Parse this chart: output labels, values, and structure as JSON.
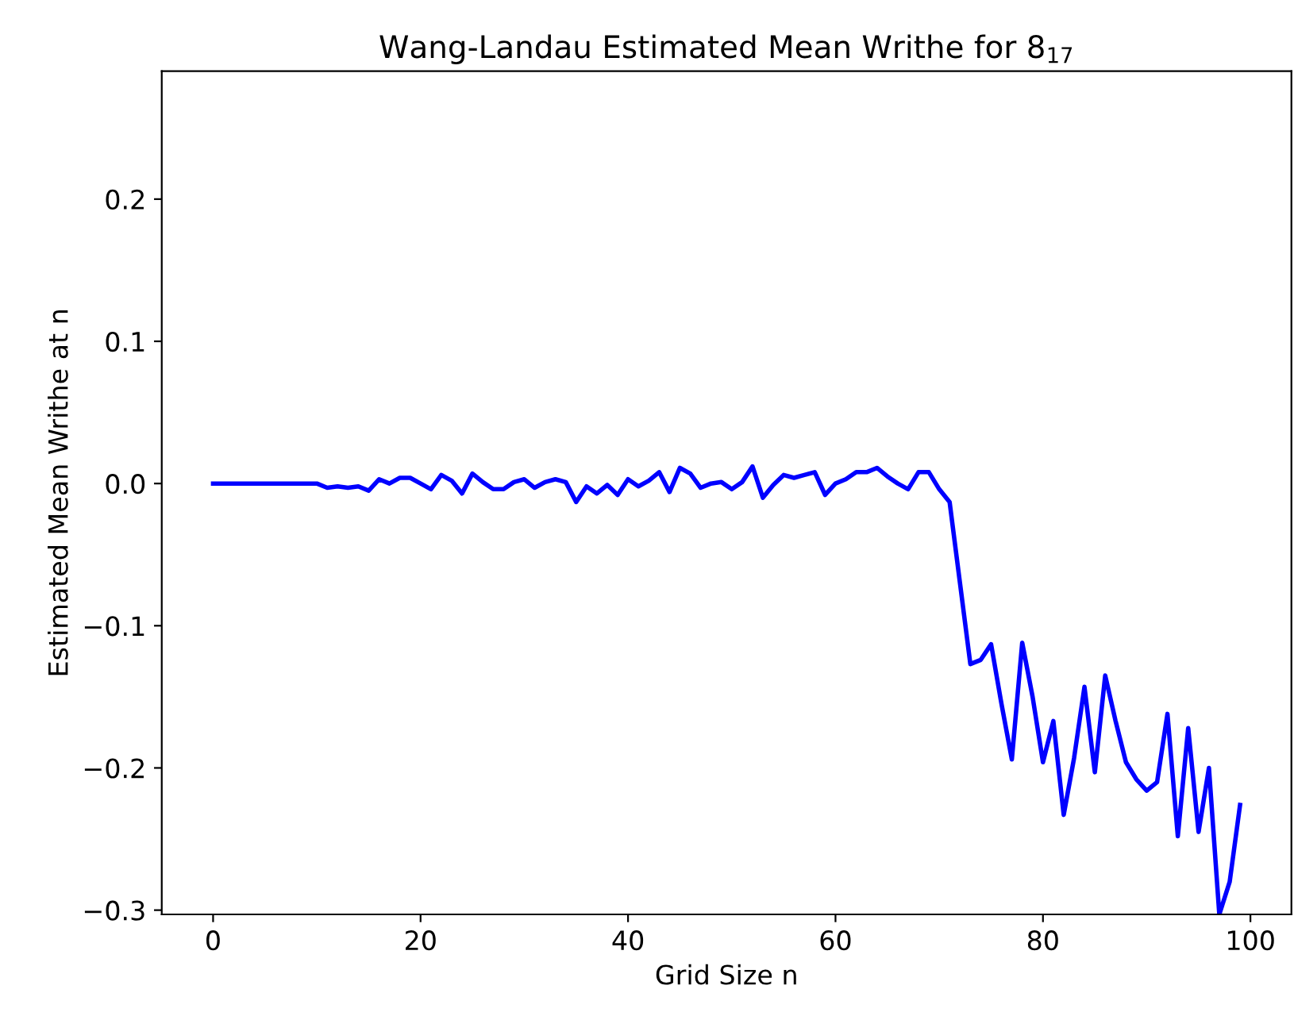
{
  "chart_data": {
    "type": "line",
    "title": "Wang-Landau Estimated Mean Writhe for 8$_{17}$",
    "xlabel": "Grid Size n",
    "ylabel": "Estimated Mean Writhe at n",
    "x": [
      0,
      1,
      2,
      3,
      4,
      5,
      6,
      7,
      8,
      9,
      10,
      11,
      12,
      13,
      14,
      15,
      16,
      17,
      18,
      19,
      20,
      21,
      22,
      23,
      24,
      25,
      26,
      27,
      28,
      29,
      30,
      31,
      32,
      33,
      34,
      35,
      36,
      37,
      38,
      39,
      40,
      41,
      42,
      43,
      44,
      45,
      46,
      47,
      48,
      49,
      50,
      51,
      52,
      53,
      54,
      55,
      56,
      57,
      58,
      59,
      60,
      61,
      62,
      63,
      64,
      65,
      66,
      67,
      68,
      69,
      70,
      71,
      72,
      73,
      74,
      75,
      76,
      77,
      78,
      79,
      80,
      81,
      82,
      83,
      84,
      85,
      86,
      87,
      88,
      89,
      90,
      91,
      92,
      93,
      94,
      95,
      96,
      97,
      98,
      99
    ],
    "series": [
      {
        "color": "#0000ff",
        "values": [
          0,
          0,
          0,
          0,
          0,
          0,
          0,
          0,
          0,
          0,
          0,
          -0.003,
          -0.002,
          -0.003,
          -0.002,
          -0.005,
          0.003,
          0.0,
          0.004,
          0.004,
          0.0,
          -0.004,
          0.006,
          0.002,
          -0.007,
          0.007,
          0.001,
          -0.004,
          -0.004,
          0.001,
          0.003,
          -0.003,
          0.001,
          0.003,
          0.001,
          -0.013,
          -0.002,
          -0.007,
          -0.001,
          -0.008,
          0.003,
          -0.002,
          0.002,
          0.008,
          -0.006,
          0.011,
          0.007,
          -0.003,
          0.0,
          0.001,
          -0.004,
          0.001,
          0.012,
          -0.01,
          -0.001,
          0.006,
          0.004,
          0.006,
          0.008,
          -0.008,
          0.0,
          0.003,
          0.008,
          0.008,
          0.011,
          0.005,
          0.0,
          -0.004,
          0.008,
          0.008,
          -0.004,
          -0.013,
          -0.07,
          -0.127,
          -0.124,
          -0.113,
          -0.155,
          -0.194,
          -0.112,
          -0.15,
          -0.196,
          -0.167,
          -0.233,
          -0.193,
          -0.143,
          -0.203,
          -0.135,
          -0.167,
          -0.196,
          -0.208,
          -0.216,
          -0.21,
          -0.162,
          -0.248,
          -0.172,
          -0.245,
          -0.2,
          -0.303,
          -0.28,
          -0.226
        ]
      }
    ],
    "xlim": [
      -4.95,
      103.95
    ],
    "ylim": [
      -0.303,
      0.29
    ],
    "xticks": [
      0,
      20,
      40,
      60,
      80,
      100
    ],
    "yticks": [
      {
        "value": -0.3,
        "label": "−0.3"
      },
      {
        "value": -0.2,
        "label": "−0.2"
      },
      {
        "value": -0.1,
        "label": "−0.1"
      },
      {
        "value": 0.0,
        "label": "0.0"
      },
      {
        "value": 0.1,
        "label": "0.1"
      },
      {
        "value": 0.2,
        "label": "0.2"
      }
    ],
    "grid": false,
    "legend": false,
    "marker": "none",
    "line_style": "solid"
  }
}
